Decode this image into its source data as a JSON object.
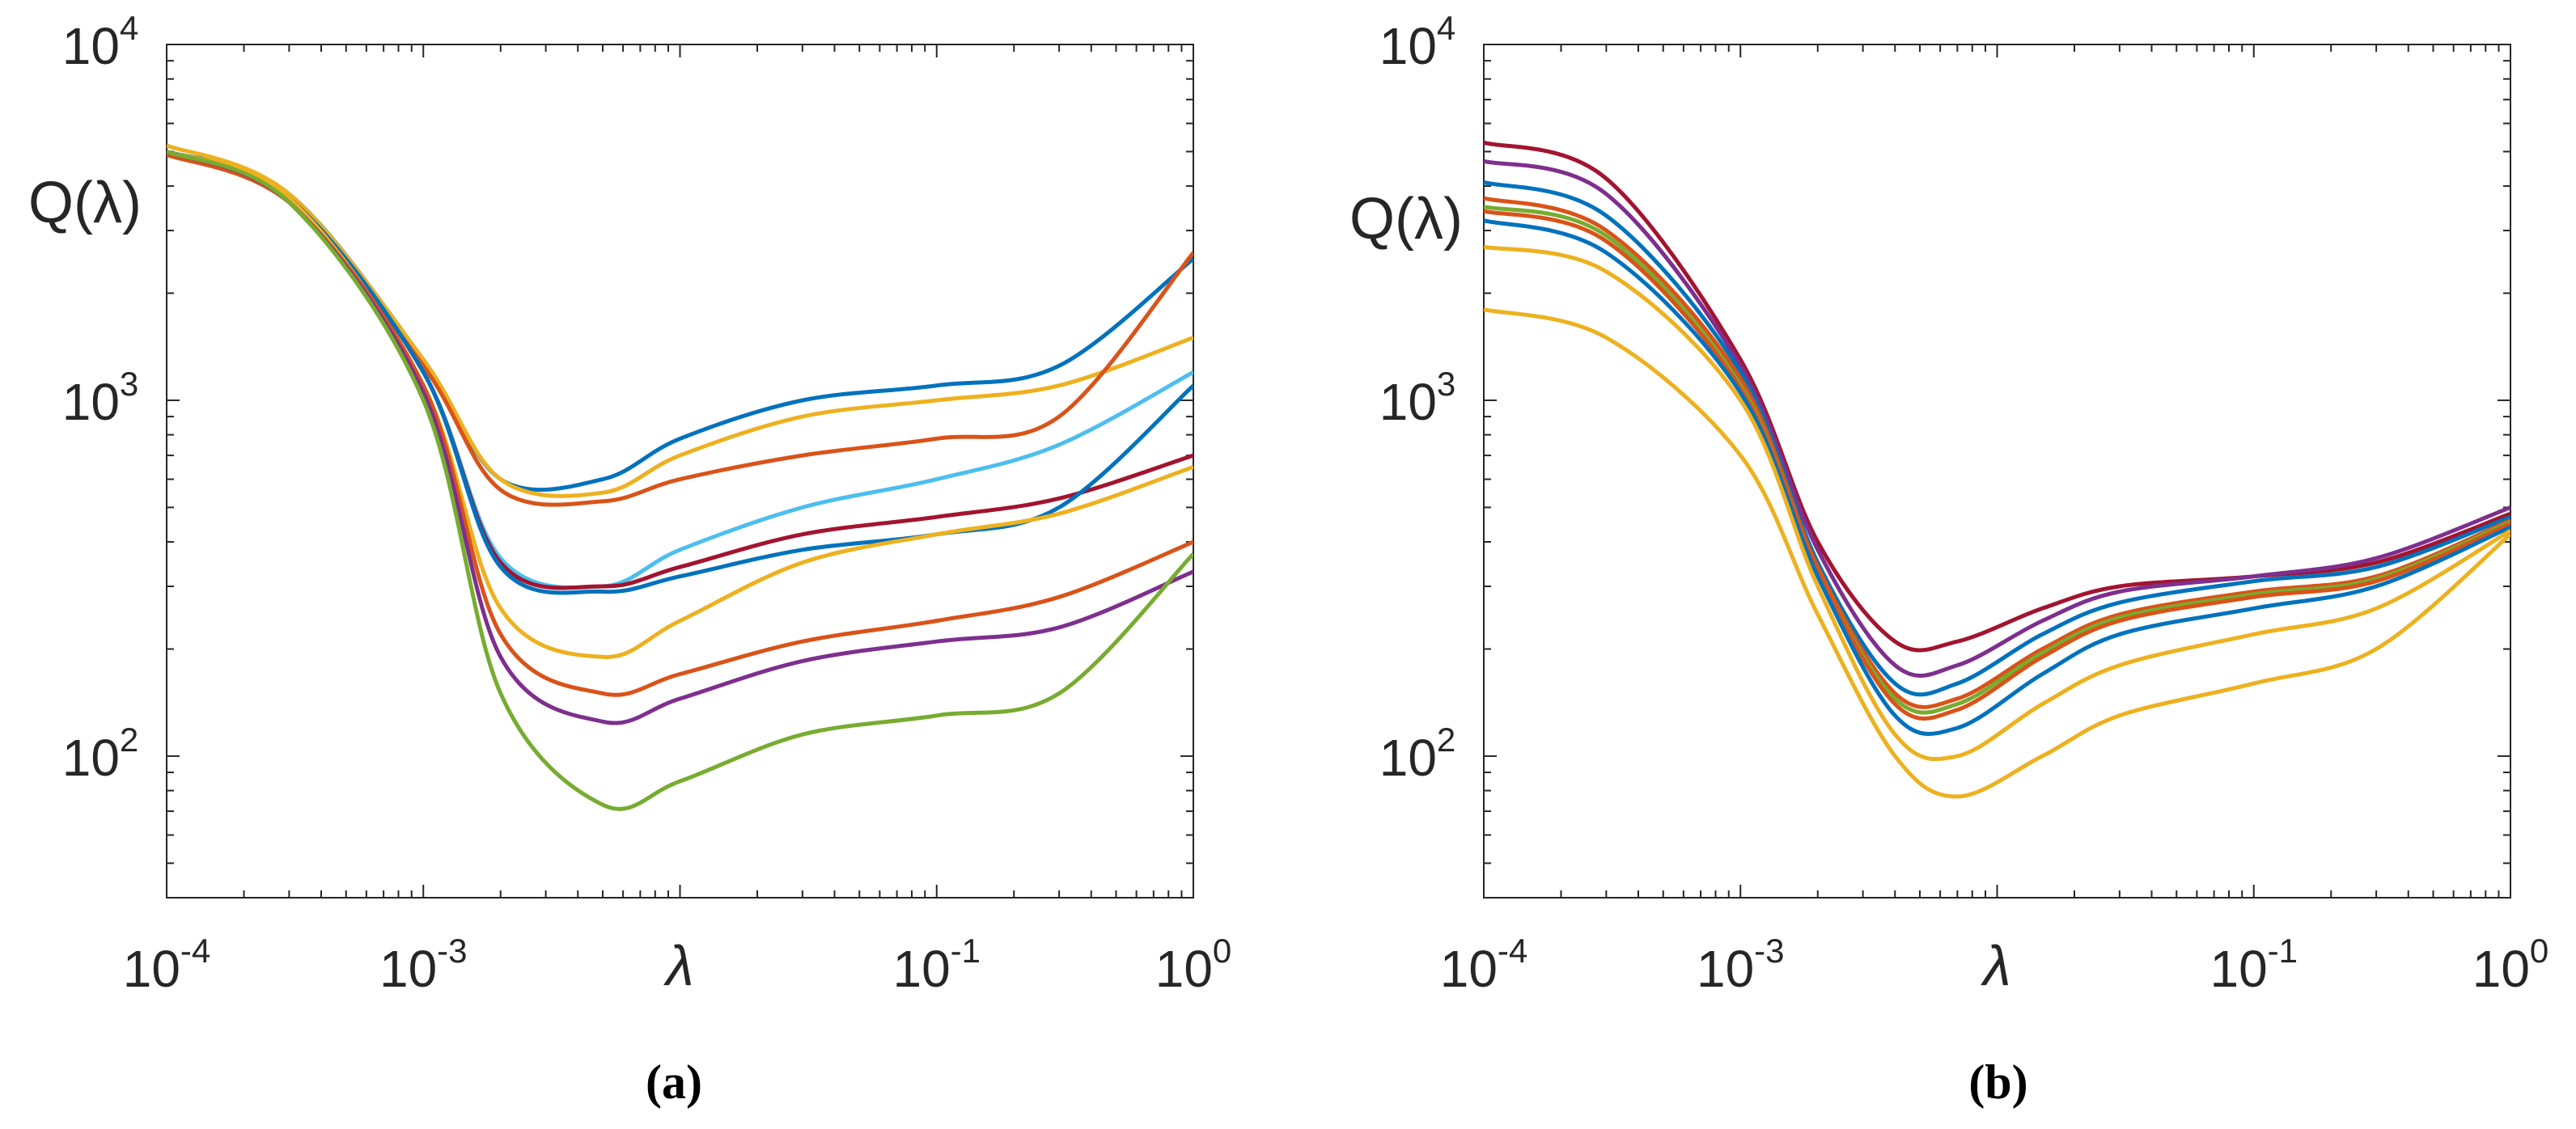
{
  "figure": {
    "caption_a": "(a)",
    "caption_b": "(b)"
  },
  "chart_data": [
    {
      "type": "line",
      "panel": "a",
      "xscale": "log",
      "yscale": "log",
      "xlim": [
        0.0001,
        1
      ],
      "ylim": [
        40,
        10000
      ],
      "xlabel": "λ",
      "ylabel": "Q(λ)",
      "xticks": [
        0.0001,
        0.001,
        0.1,
        1
      ],
      "xtick_labels": [
        {
          "base": "10",
          "exp": "-4"
        },
        {
          "base": "10",
          "exp": "-3"
        },
        {
          "base": "10",
          "exp": "-1"
        },
        {
          "base": "10",
          "exp": "0"
        }
      ],
      "yticks": [
        100,
        1000,
        10000
      ],
      "ytick_labels": [
        {
          "base": "10",
          "exp": "2"
        },
        {
          "base": "10",
          "exp": "3"
        },
        {
          "base": "10",
          "exp": "4"
        }
      ],
      "grid": false,
      "series": [
        {
          "name": "a-blue-top",
          "color": "#0072BD",
          "x": [
            0.0001,
            0.0003,
            0.001,
            0.002,
            0.005,
            0.01,
            0.03,
            0.1,
            0.3,
            1
          ],
          "y": [
            5000,
            3800,
            1300,
            600,
            600,
            780,
            1000,
            1100,
            1250,
            2500
          ]
        },
        {
          "name": "a-yellow-top",
          "color": "#EDB120",
          "x": [
            0.0001,
            0.0003,
            0.001,
            0.002,
            0.005,
            0.01,
            0.03,
            0.1,
            0.3,
            1
          ],
          "y": [
            5200,
            3800,
            1300,
            600,
            550,
            700,
            900,
            1000,
            1100,
            1500
          ]
        },
        {
          "name": "a-orange-top",
          "color": "#D95319",
          "x": [
            0.0001,
            0.0003,
            0.001,
            0.002,
            0.005,
            0.01,
            0.03,
            0.1,
            0.3,
            1
          ],
          "y": [
            4900,
            3600,
            1250,
            560,
            520,
            600,
            700,
            780,
            900,
            2600
          ]
        },
        {
          "name": "a-lightblue",
          "color": "#4DBEEE",
          "x": [
            0.0001,
            0.0003,
            0.001,
            0.002,
            0.005,
            0.01,
            0.03,
            0.1,
            0.3,
            1
          ],
          "y": [
            5000,
            3700,
            1200,
            360,
            300,
            380,
            500,
            600,
            750,
            1200
          ]
        },
        {
          "name": "a-darkred",
          "color": "#A2142F",
          "x": [
            0.0001,
            0.0003,
            0.001,
            0.002,
            0.005,
            0.01,
            0.03,
            0.1,
            0.3,
            1
          ],
          "y": [
            5000,
            3700,
            1200,
            350,
            300,
            340,
            420,
            470,
            530,
            700
          ]
        },
        {
          "name": "a-blue-mid",
          "color": "#0072BD",
          "x": [
            0.0001,
            0.0003,
            0.001,
            0.002,
            0.005,
            0.01,
            0.03,
            0.1,
            0.3,
            1
          ],
          "y": [
            5000,
            3700,
            1200,
            340,
            290,
            320,
            380,
            420,
            500,
            1100
          ]
        },
        {
          "name": "a-yellow-mid",
          "color": "#EDB120",
          "x": [
            0.0001,
            0.0003,
            0.001,
            0.002,
            0.005,
            0.01,
            0.03,
            0.1,
            0.3,
            1
          ],
          "y": [
            5000,
            3700,
            1100,
            260,
            190,
            240,
            350,
            420,
            480,
            650
          ]
        },
        {
          "name": "a-orange-low",
          "color": "#D95319",
          "x": [
            0.0001,
            0.0003,
            0.001,
            0.002,
            0.005,
            0.01,
            0.03,
            0.1,
            0.3,
            1
          ],
          "y": [
            5000,
            3600,
            1100,
            220,
            150,
            170,
            210,
            240,
            280,
            400
          ]
        },
        {
          "name": "a-purple",
          "color": "#7E2F8E",
          "x": [
            0.0001,
            0.0003,
            0.001,
            0.002,
            0.005,
            0.01,
            0.03,
            0.1,
            0.3,
            1
          ],
          "y": [
            5000,
            3600,
            1050,
            190,
            125,
            145,
            185,
            210,
            230,
            330
          ]
        },
        {
          "name": "a-green",
          "color": "#77AC30",
          "x": [
            0.0001,
            0.0003,
            0.001,
            0.002,
            0.005,
            0.01,
            0.03,
            0.1,
            0.3,
            1
          ],
          "y": [
            5000,
            3600,
            1000,
            150,
            73,
            85,
            115,
            130,
            150,
            370
          ]
        }
      ]
    },
    {
      "type": "line",
      "panel": "b",
      "xscale": "log",
      "yscale": "log",
      "xlim": [
        0.0001,
        1
      ],
      "ylim": [
        40,
        10000
      ],
      "xlabel": "λ",
      "ylabel": "Q(λ)",
      "xticks": [
        0.0001,
        0.001,
        0.1,
        1
      ],
      "xtick_labels": [
        {
          "base": "10",
          "exp": "-4"
        },
        {
          "base": "10",
          "exp": "-3"
        },
        {
          "base": "10",
          "exp": "-1"
        },
        {
          "base": "10",
          "exp": "0"
        }
      ],
      "yticks": [
        100,
        1000,
        10000
      ],
      "ytick_labels": [
        {
          "base": "10",
          "exp": "2"
        },
        {
          "base": "10",
          "exp": "3"
        },
        {
          "base": "10",
          "exp": "4"
        }
      ],
      "grid": false,
      "series": [
        {
          "name": "b-darkred",
          "color": "#A2142F",
          "x": [
            0.0001,
            0.0003,
            0.001,
            0.002,
            0.004,
            0.007,
            0.015,
            0.03,
            0.1,
            0.3,
            1
          ],
          "y": [
            5300,
            4200,
            1300,
            400,
            210,
            210,
            260,
            300,
            320,
            350,
            480
          ]
        },
        {
          "name": "b-purple",
          "color": "#7E2F8E",
          "x": [
            0.0001,
            0.0003,
            0.001,
            0.002,
            0.004,
            0.007,
            0.015,
            0.03,
            0.1,
            0.3,
            1
          ],
          "y": [
            4700,
            3800,
            1250,
            380,
            180,
            180,
            240,
            290,
            320,
            360,
            500
          ]
        },
        {
          "name": "b-blue-1",
          "color": "#0072BD",
          "x": [
            0.0001,
            0.0003,
            0.001,
            0.002,
            0.004,
            0.007,
            0.015,
            0.03,
            0.1,
            0.3,
            1
          ],
          "y": [
            4100,
            3300,
            1200,
            350,
            160,
            160,
            220,
            270,
            310,
            340,
            470
          ]
        },
        {
          "name": "b-orange",
          "color": "#D95319",
          "x": [
            0.0001,
            0.0003,
            0.001,
            0.002,
            0.004,
            0.007,
            0.015,
            0.03,
            0.1,
            0.3,
            1
          ],
          "y": [
            3700,
            3000,
            1150,
            340,
            150,
            145,
            200,
            250,
            290,
            320,
            460
          ]
        },
        {
          "name": "b-green",
          "color": "#77AC30",
          "x": [
            0.0001,
            0.0003,
            0.001,
            0.002,
            0.004,
            0.007,
            0.015,
            0.03,
            0.1,
            0.3,
            1
          ],
          "y": [
            3500,
            2900,
            1100,
            330,
            145,
            140,
            195,
            245,
            285,
            315,
            455
          ]
        },
        {
          "name": "b-orange-thin",
          "color": "#D95319",
          "x": [
            0.0001,
            0.0003,
            0.001,
            0.002,
            0.004,
            0.007,
            0.015,
            0.03,
            0.1,
            0.3,
            1
          ],
          "y": [
            3400,
            2800,
            1080,
            330,
            140,
            135,
            190,
            240,
            280,
            310,
            450
          ]
        },
        {
          "name": "b-blue-2",
          "color": "#0072BD",
          "x": [
            0.0001,
            0.0003,
            0.001,
            0.002,
            0.004,
            0.007,
            0.015,
            0.03,
            0.1,
            0.3,
            1
          ],
          "y": [
            3200,
            2600,
            1050,
            320,
            130,
            120,
            170,
            220,
            260,
            300,
            440
          ]
        },
        {
          "name": "b-yellow-1",
          "color": "#EDB120",
          "x": [
            0.0001,
            0.0003,
            0.001,
            0.002,
            0.004,
            0.007,
            0.015,
            0.03,
            0.1,
            0.3,
            1
          ],
          "y": [
            2700,
            2300,
            1000,
            300,
            115,
            100,
            140,
            180,
            220,
            260,
            430
          ]
        },
        {
          "name": "b-yellow-2",
          "color": "#EDB120",
          "x": [
            0.0001,
            0.0003,
            0.001,
            0.002,
            0.004,
            0.007,
            0.015,
            0.03,
            0.1,
            0.3,
            1
          ],
          "y": [
            1800,
            1500,
            700,
            250,
            100,
            77,
            100,
            130,
            160,
            200,
            420
          ]
        }
      ]
    }
  ]
}
